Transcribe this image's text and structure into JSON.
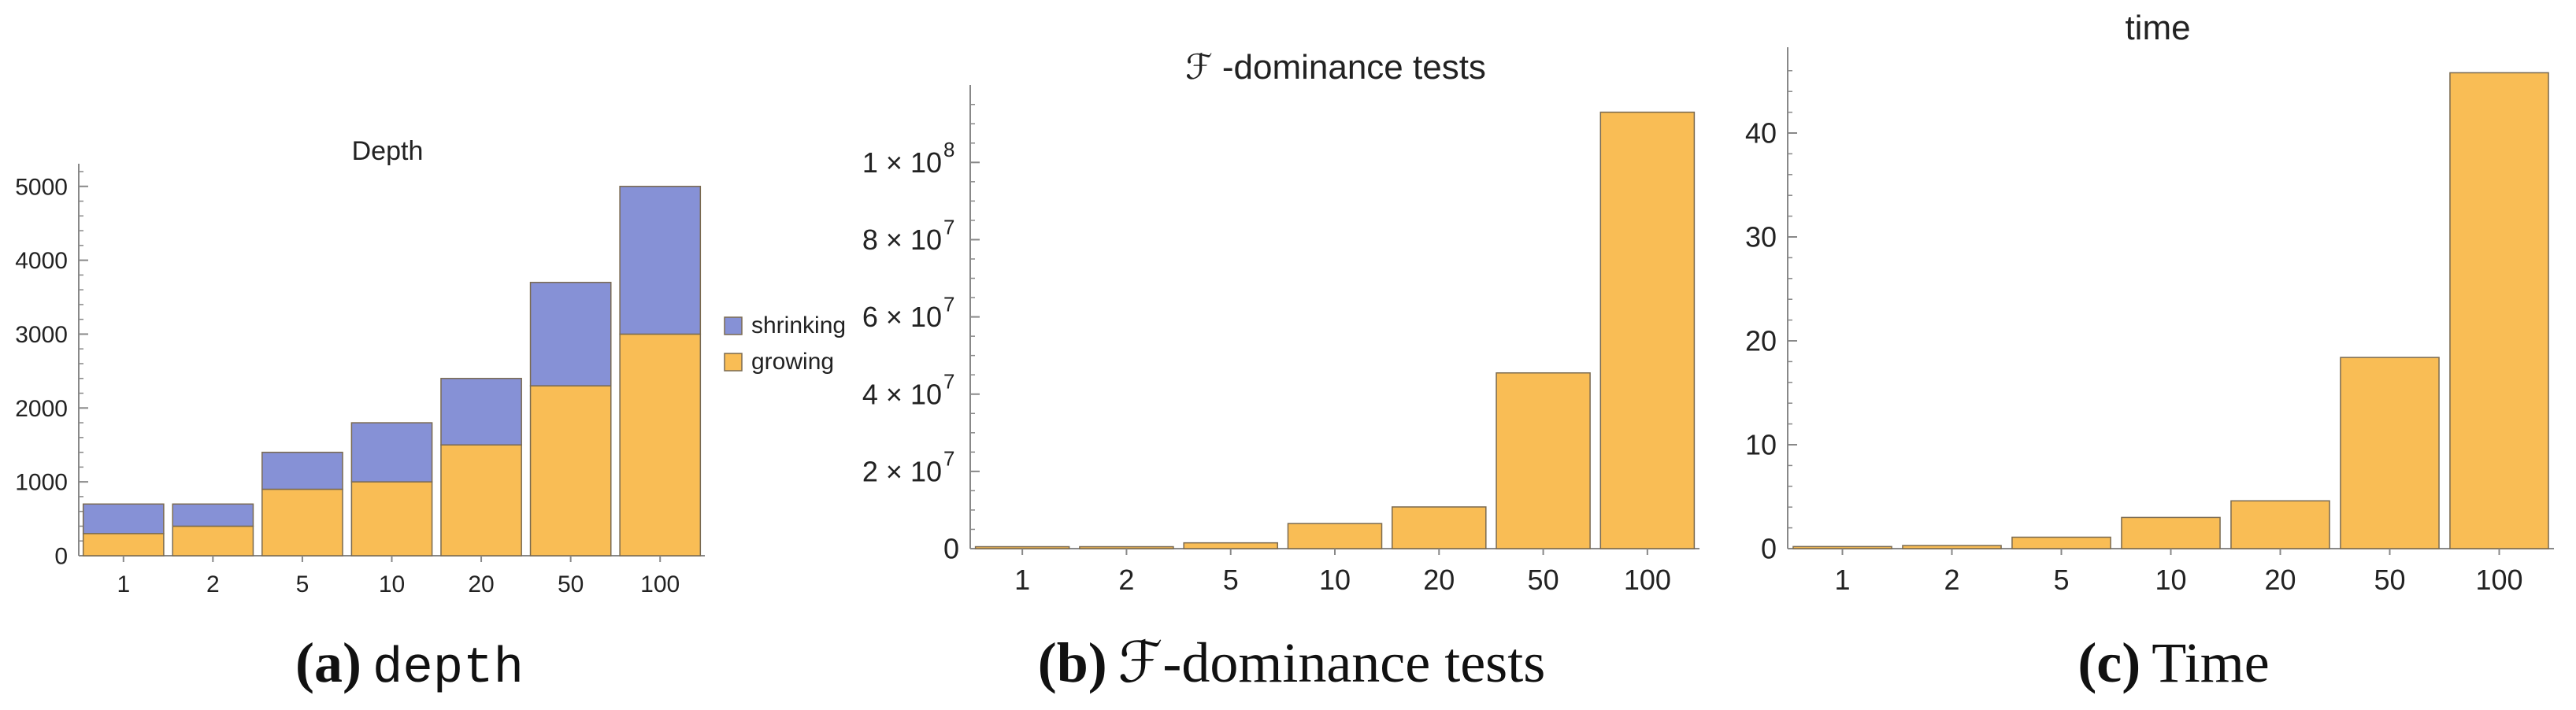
{
  "colors": {
    "growing": "#f9bd55",
    "shrinking": "#8691d6",
    "bar_stroke": "#7a6a50",
    "axis": "#888888"
  },
  "chart_data": [
    {
      "type": "bar",
      "stacked": true,
      "title": "Depth",
      "categories": [
        "1",
        "2",
        "5",
        "10",
        "20",
        "50",
        "100"
      ],
      "series": [
        {
          "name": "growing",
          "values": [
            300,
            400,
            900,
            1000,
            1500,
            2300,
            3000
          ]
        },
        {
          "name": "shrinking",
          "values": [
            400,
            300,
            500,
            800,
            900,
            1400,
            2000
          ]
        }
      ],
      "ylim": [
        0,
        5200
      ],
      "yticks": [
        0,
        1000,
        2000,
        3000,
        4000,
        5000
      ],
      "legend": [
        "shrinking",
        "growing"
      ],
      "legend_position": "right",
      "caption_label": "(a)",
      "caption_text": "depth"
    },
    {
      "type": "bar",
      "title": "ℱ -dominance tests",
      "categories": [
        "1",
        "2",
        "5",
        "10",
        "20",
        "50",
        "100"
      ],
      "series": [
        {
          "values": [
            500000,
            500000,
            1500000,
            6500000,
            10800000,
            45500000,
            113000000
          ]
        }
      ],
      "ylim": [
        0,
        118000000
      ],
      "yticks": [
        {
          "value": 0,
          "label": "0"
        },
        {
          "value": 20000000,
          "label": "2 × 10",
          "exp": "7"
        },
        {
          "value": 40000000,
          "label": "4 × 10",
          "exp": "7"
        },
        {
          "value": 60000000,
          "label": "6 × 10",
          "exp": "7"
        },
        {
          "value": 80000000,
          "label": "8 × 10",
          "exp": "7"
        },
        {
          "value": 100000000,
          "label": "1 × 10",
          "exp": "8"
        }
      ],
      "caption_label": "(b)",
      "caption_text": "ℱ-dominance tests"
    },
    {
      "type": "bar",
      "title": "time",
      "categories": [
        "1",
        "2",
        "5",
        "10",
        "20",
        "50",
        "100"
      ],
      "series": [
        {
          "values": [
            0.2,
            0.3,
            1.1,
            3.0,
            4.6,
            18.4,
            45.8
          ]
        }
      ],
      "ylim": [
        0,
        47.5
      ],
      "yticks": [
        0,
        10,
        20,
        30,
        40
      ],
      "caption_label": "(c)",
      "caption_text": "Time"
    }
  ]
}
